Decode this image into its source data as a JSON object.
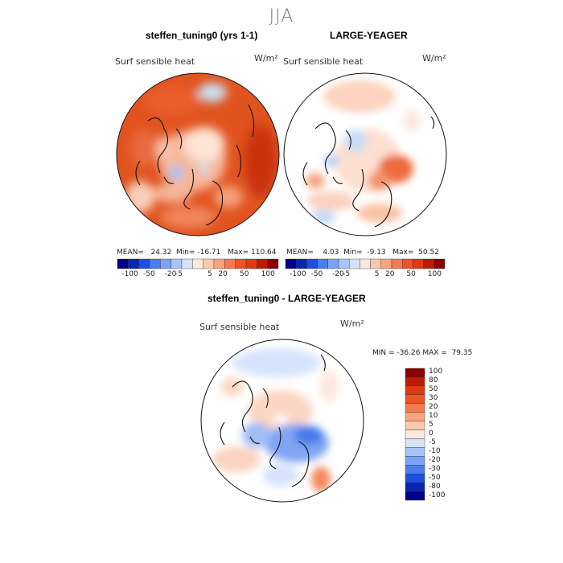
{
  "season": "JJA",
  "variable": "Surf sensible heat",
  "units": "W/m²",
  "panels": [
    {
      "id": "test",
      "title": "steffen_tuning0 (yrs 1-1)",
      "stats": {
        "mean_label": "MEAN=",
        "mean": "24.32",
        "min_label": "Min=",
        "min": "-16.71",
        "max_label": "Max=",
        "max": "110.64"
      }
    },
    {
      "id": "control",
      "title": "LARGE-YEAGER",
      "stats": {
        "mean_label": "MEAN=",
        "mean": "4.03",
        "min_label": "Min=",
        "min": "-9.13",
        "max_label": "Max=",
        "max": "50.52"
      }
    },
    {
      "id": "diff",
      "title": "steffen_tuning0 - LARGE-YEAGER",
      "stats": {
        "min_label": "MIN =",
        "min": "-36.26",
        "max_label": "MAX =",
        "max": "79.35"
      }
    }
  ],
  "colorbar_horizontal": {
    "tick_labels": [
      "-100",
      "-50",
      "-20",
      "-5",
      "5",
      "20",
      "50",
      "100"
    ],
    "colors": [
      "#00008b",
      "#0a24b4",
      "#1f4fe0",
      "#4a7df0",
      "#7ca2f5",
      "#aac4f8",
      "#d4e2fb",
      "#fde9dc",
      "#fcc9ad",
      "#f9a47f",
      "#f47a52",
      "#ee5229",
      "#e03a10",
      "#b91c00",
      "#8b0000"
    ]
  },
  "colorbar_vertical": {
    "tick_labels": [
      "100",
      "80",
      "50",
      "30",
      "20",
      "10",
      "5",
      "0",
      "-5",
      "-10",
      "-20",
      "-30",
      "-50",
      "-80",
      "-100"
    ],
    "colors": [
      "#8b0000",
      "#b91c00",
      "#e03a10",
      "#ee5229",
      "#f47a52",
      "#f9a47f",
      "#fcc9ad",
      "#fde9dc",
      "#d4e2fb",
      "#aac4f8",
      "#7ca2f5",
      "#4a7df0",
      "#1f4fe0",
      "#0a24b4",
      "#00008b"
    ]
  },
  "chart_data": [
    {
      "type": "heatmap",
      "projection": "north polar stereographic",
      "title": "steffen_tuning0 (yrs 1-1)",
      "variable": "Surf sensible heat",
      "units": "W/m²",
      "season": "JJA",
      "mean": 24.32,
      "min": -16.71,
      "max": 110.64,
      "contour_levels": [
        -100,
        -50,
        -20,
        -5,
        5,
        20,
        50,
        100
      ]
    },
    {
      "type": "heatmap",
      "projection": "north polar stereographic",
      "title": "LARGE-YEAGER",
      "variable": "Surf sensible heat",
      "units": "W/m²",
      "season": "JJA",
      "mean": 4.03,
      "min": -9.13,
      "max": 50.52,
      "contour_levels": [
        -100,
        -50,
        -20,
        -5,
        5,
        20,
        50,
        100
      ]
    },
    {
      "type": "heatmap",
      "projection": "north polar stereographic",
      "title": "steffen_tuning0 - LARGE-YEAGER",
      "variable": "Surf sensible heat",
      "units": "W/m²",
      "season": "JJA",
      "min": -36.26,
      "max": 79.35,
      "contour_levels": [
        -100,
        -80,
        -50,
        -30,
        -20,
        -10,
        -5,
        0,
        5,
        10,
        20,
        30,
        50,
        80,
        100
      ]
    }
  ]
}
